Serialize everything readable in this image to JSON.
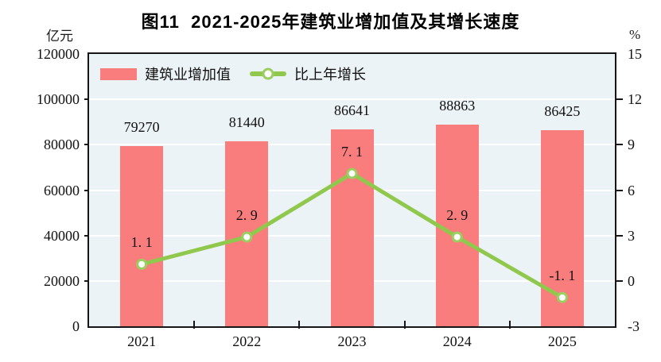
{
  "title": "图11  2021-2025年建筑业增加值及其增长速度",
  "legend": {
    "items": [
      {
        "label": "建筑业增加值",
        "swatch": "red-bar"
      },
      {
        "label": "比上年增长",
        "swatch": "green-line-marker"
      }
    ]
  },
  "chart_data": {
    "type": "bar+line",
    "title": "图11  2021-2025年建筑业增加值及其增长速度",
    "categories": [
      "2021",
      "2022",
      "2023",
      "2024",
      "2025"
    ],
    "series": [
      {
        "name": "建筑业增加值",
        "type": "bar",
        "axis": "left",
        "color": "#FA7D7D",
        "values": [
          79270,
          81440,
          86641,
          88863,
          86425
        ]
      },
      {
        "name": "比上年增长",
        "type": "line",
        "axis": "right",
        "color": "#8FC84C",
        "marker": "white-circle-green-ring",
        "values": [
          1.1,
          2.9,
          7.1,
          2.9,
          -1.1
        ]
      }
    ],
    "left_axis": {
      "unit": "亿元",
      "min": 0,
      "max": 120000,
      "step": 20000,
      "ticks": [
        "120000",
        "100000",
        "80000",
        "60000",
        "40000",
        "20000",
        "0"
      ]
    },
    "right_axis": {
      "unit": "%",
      "min": -3,
      "max": 15,
      "step": 3,
      "ticks": [
        "15",
        "12",
        "9",
        "6",
        "3",
        "0",
        "-3"
      ]
    },
    "grid": "horizontal-white-lines",
    "plot_bg": "#ECF3F7",
    "legend_position": "top-left-inside"
  }
}
